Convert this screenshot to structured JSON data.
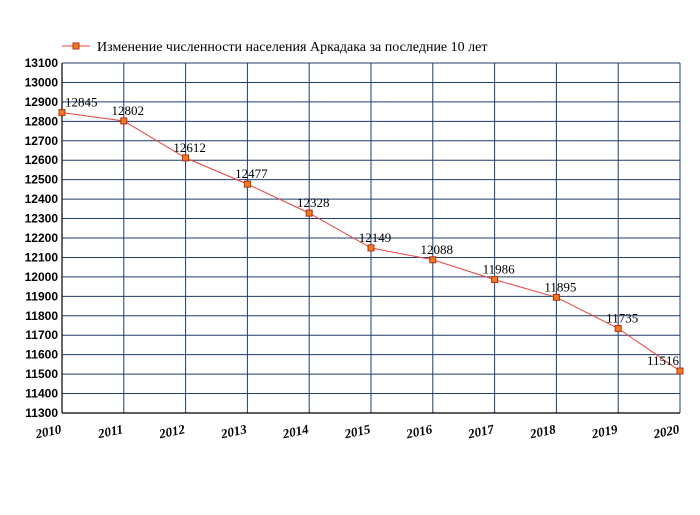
{
  "chart_data": {
    "type": "line",
    "title": "",
    "xlabel": "",
    "ylabel": "",
    "x": [
      2010,
      2011,
      2012,
      2013,
      2014,
      2015,
      2016,
      2017,
      2018,
      2019,
      2020
    ],
    "series": [
      {
        "name": "Изменение численности населения Аркадака за последние 10 лет",
        "values": [
          12845,
          12802,
          12612,
          12477,
          12328,
          12149,
          12088,
          11986,
          11895,
          11735,
          11516
        ]
      }
    ],
    "ylim": [
      11300,
      13100
    ],
    "yticks": [
      13100,
      13000,
      12900,
      12800,
      12700,
      12600,
      12500,
      12400,
      12300,
      12200,
      12100,
      12000,
      11900,
      11800,
      11700,
      11600,
      11500,
      11400,
      11300
    ],
    "grid": true,
    "legend_position": "top",
    "colors": {
      "line": "#e8423f",
      "marker_fill": "#f07a20",
      "marker_stroke": "#b03018",
      "grid": "#1f3d6b",
      "axis": "#000000"
    }
  }
}
